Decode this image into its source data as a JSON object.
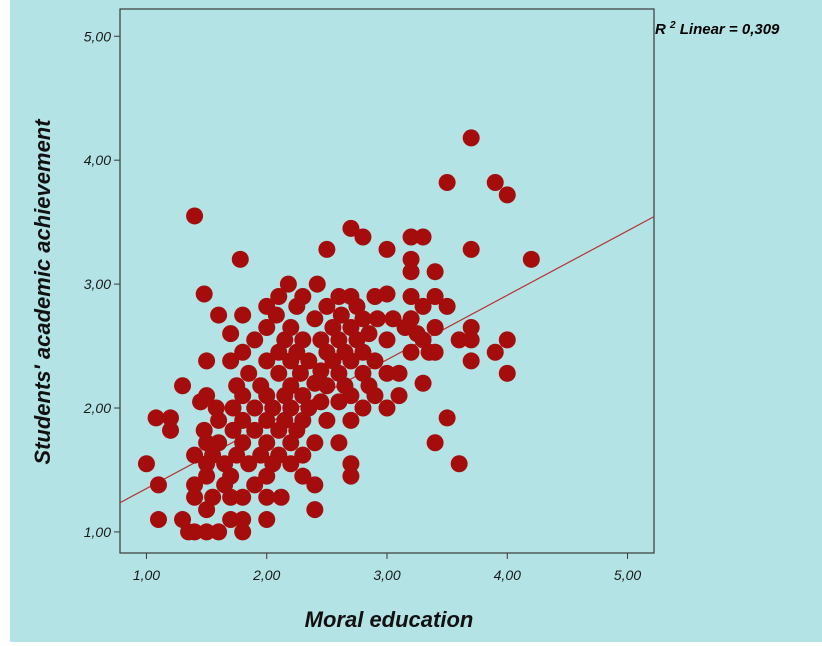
{
  "chart_data": {
    "type": "scatter",
    "xlabel": "Moral education",
    "ylabel": "Students' academic achievement",
    "xlim": [
      0.78,
      5.22
    ],
    "ylim": [
      0.83,
      5.22
    ],
    "x_ticks": [
      1,
      2,
      3,
      4,
      5
    ],
    "y_ticks": [
      1,
      2,
      3,
      4,
      5
    ],
    "x_tick_labels": [
      "1,00",
      "2,00",
      "3,00",
      "4,00",
      "5,00"
    ],
    "y_tick_labels": [
      "1,00",
      "2,00",
      "3,00",
      "4,00",
      "5,00"
    ],
    "grid": false,
    "annotation": {
      "r2_symbol": "R",
      "r2_superscript": "2",
      "text": " Linear = 0,309"
    },
    "fit_line": {
      "intercept": 0.83,
      "slope": 0.52
    },
    "point_color": "#a50d0d",
    "line_color": "#b83333",
    "background_color": "#b3e3e5",
    "points": [
      [
        1.0,
        1.55
      ],
      [
        1.08,
        1.92
      ],
      [
        1.1,
        1.38
      ],
      [
        1.1,
        1.1
      ],
      [
        1.2,
        1.92
      ],
      [
        1.2,
        1.82
      ],
      [
        1.3,
        2.18
      ],
      [
        1.3,
        1.1
      ],
      [
        1.35,
        1.0
      ],
      [
        1.4,
        3.55
      ],
      [
        1.4,
        1.62
      ],
      [
        1.4,
        1.38
      ],
      [
        1.4,
        1.28
      ],
      [
        1.4,
        1.0
      ],
      [
        1.45,
        2.05
      ],
      [
        1.48,
        2.92
      ],
      [
        1.48,
        1.82
      ],
      [
        1.5,
        2.38
      ],
      [
        1.5,
        2.1
      ],
      [
        1.5,
        1.72
      ],
      [
        1.5,
        1.55
      ],
      [
        1.5,
        1.45
      ],
      [
        1.5,
        1.18
      ],
      [
        1.5,
        1.0
      ],
      [
        1.55,
        1.62
      ],
      [
        1.55,
        1.28
      ],
      [
        1.58,
        2.0
      ],
      [
        1.6,
        2.75
      ],
      [
        1.6,
        1.9
      ],
      [
        1.6,
        1.72
      ],
      [
        1.6,
        1.0
      ],
      [
        1.65,
        1.55
      ],
      [
        1.65,
        1.38
      ],
      [
        1.7,
        2.6
      ],
      [
        1.7,
        2.38
      ],
      [
        1.7,
        1.45
      ],
      [
        1.7,
        1.28
      ],
      [
        1.7,
        1.1
      ],
      [
        1.72,
        2.0
      ],
      [
        1.72,
        1.82
      ],
      [
        1.75,
        2.18
      ],
      [
        1.75,
        1.62
      ],
      [
        1.78,
        3.2
      ],
      [
        1.8,
        2.75
      ],
      [
        1.8,
        2.45
      ],
      [
        1.8,
        2.1
      ],
      [
        1.8,
        1.9
      ],
      [
        1.8,
        1.72
      ],
      [
        1.8,
        1.28
      ],
      [
        1.8,
        1.1
      ],
      [
        1.8,
        1.0
      ],
      [
        1.85,
        2.28
      ],
      [
        1.85,
        1.55
      ],
      [
        1.9,
        2.55
      ],
      [
        1.9,
        2.0
      ],
      [
        1.9,
        1.82
      ],
      [
        1.9,
        1.38
      ],
      [
        1.95,
        2.18
      ],
      [
        1.95,
        1.62
      ],
      [
        2.0,
        2.82
      ],
      [
        2.0,
        2.65
      ],
      [
        2.0,
        2.38
      ],
      [
        2.0,
        2.1
      ],
      [
        2.0,
        1.9
      ],
      [
        2.0,
        1.72
      ],
      [
        2.0,
        1.45
      ],
      [
        2.0,
        1.28
      ],
      [
        2.0,
        1.1
      ],
      [
        2.05,
        2.0
      ],
      [
        2.05,
        1.55
      ],
      [
        2.08,
        2.75
      ],
      [
        2.1,
        2.9
      ],
      [
        2.1,
        2.45
      ],
      [
        2.1,
        2.28
      ],
      [
        2.1,
        1.82
      ],
      [
        2.1,
        1.62
      ],
      [
        2.12,
        1.28
      ],
      [
        2.15,
        2.55
      ],
      [
        2.15,
        2.1
      ],
      [
        2.15,
        1.9
      ],
      [
        2.18,
        3.0
      ],
      [
        2.2,
        2.65
      ],
      [
        2.2,
        2.38
      ],
      [
        2.2,
        2.18
      ],
      [
        2.2,
        2.0
      ],
      [
        2.2,
        1.72
      ],
      [
        2.2,
        1.55
      ],
      [
        2.25,
        2.82
      ],
      [
        2.25,
        2.45
      ],
      [
        2.25,
        1.82
      ],
      [
        2.28,
        2.28
      ],
      [
        2.3,
        2.9
      ],
      [
        2.3,
        2.55
      ],
      [
        2.3,
        2.1
      ],
      [
        2.3,
        1.9
      ],
      [
        2.3,
        1.62
      ],
      [
        2.3,
        1.45
      ],
      [
        2.35,
        2.38
      ],
      [
        2.35,
        2.0
      ],
      [
        2.4,
        2.72
      ],
      [
        2.4,
        2.2
      ],
      [
        2.4,
        1.72
      ],
      [
        2.4,
        1.38
      ],
      [
        2.4,
        1.18
      ],
      [
        2.42,
        3.0
      ],
      [
        2.45,
        2.55
      ],
      [
        2.45,
        2.3
      ],
      [
        2.45,
        2.05
      ],
      [
        2.5,
        3.28
      ],
      [
        2.5,
        2.82
      ],
      [
        2.5,
        2.45
      ],
      [
        2.5,
        2.18
      ],
      [
        2.5,
        1.9
      ],
      [
        2.55,
        2.65
      ],
      [
        2.55,
        2.38
      ],
      [
        2.6,
        2.9
      ],
      [
        2.6,
        2.55
      ],
      [
        2.6,
        2.28
      ],
      [
        2.6,
        2.05
      ],
      [
        2.6,
        1.72
      ],
      [
        2.62,
        2.75
      ],
      [
        2.65,
        2.45
      ],
      [
        2.65,
        2.18
      ],
      [
        2.7,
        3.45
      ],
      [
        2.7,
        2.9
      ],
      [
        2.7,
        2.65
      ],
      [
        2.7,
        2.38
      ],
      [
        2.7,
        2.1
      ],
      [
        2.7,
        1.9
      ],
      [
        2.7,
        1.55
      ],
      [
        2.7,
        1.45
      ],
      [
        2.75,
        2.82
      ],
      [
        2.75,
        2.55
      ],
      [
        2.8,
        3.38
      ],
      [
        2.8,
        2.72
      ],
      [
        2.8,
        2.45
      ],
      [
        2.8,
        2.28
      ],
      [
        2.8,
        2.0
      ],
      [
        2.85,
        2.6
      ],
      [
        2.85,
        2.18
      ],
      [
        2.9,
        2.9
      ],
      [
        2.9,
        2.38
      ],
      [
        2.9,
        2.1
      ],
      [
        2.92,
        2.72
      ],
      [
        3.0,
        3.28
      ],
      [
        3.0,
        2.92
      ],
      [
        3.0,
        2.55
      ],
      [
        3.0,
        2.28
      ],
      [
        3.0,
        2.0
      ],
      [
        3.05,
        2.72
      ],
      [
        3.1,
        2.28
      ],
      [
        3.1,
        2.1
      ],
      [
        3.15,
        2.65
      ],
      [
        3.2,
        3.38
      ],
      [
        3.2,
        3.2
      ],
      [
        3.2,
        3.1
      ],
      [
        3.2,
        2.9
      ],
      [
        3.2,
        2.72
      ],
      [
        3.2,
        2.45
      ],
      [
        3.25,
        2.6
      ],
      [
        3.3,
        3.38
      ],
      [
        3.3,
        2.82
      ],
      [
        3.3,
        2.55
      ],
      [
        3.3,
        2.2
      ],
      [
        3.35,
        2.45
      ],
      [
        3.4,
        3.1
      ],
      [
        3.4,
        2.9
      ],
      [
        3.4,
        2.65
      ],
      [
        3.4,
        2.45
      ],
      [
        3.4,
        1.72
      ],
      [
        3.5,
        3.82
      ],
      [
        3.5,
        2.82
      ],
      [
        3.5,
        1.92
      ],
      [
        3.6,
        2.55
      ],
      [
        3.6,
        1.55
      ],
      [
        3.7,
        4.18
      ],
      [
        3.7,
        3.28
      ],
      [
        3.7,
        2.65
      ],
      [
        3.7,
        2.55
      ],
      [
        3.7,
        2.38
      ],
      [
        3.9,
        3.82
      ],
      [
        3.9,
        2.45
      ],
      [
        4.0,
        3.72
      ],
      [
        4.0,
        2.55
      ],
      [
        4.0,
        2.28
      ],
      [
        4.2,
        3.2
      ]
    ]
  }
}
